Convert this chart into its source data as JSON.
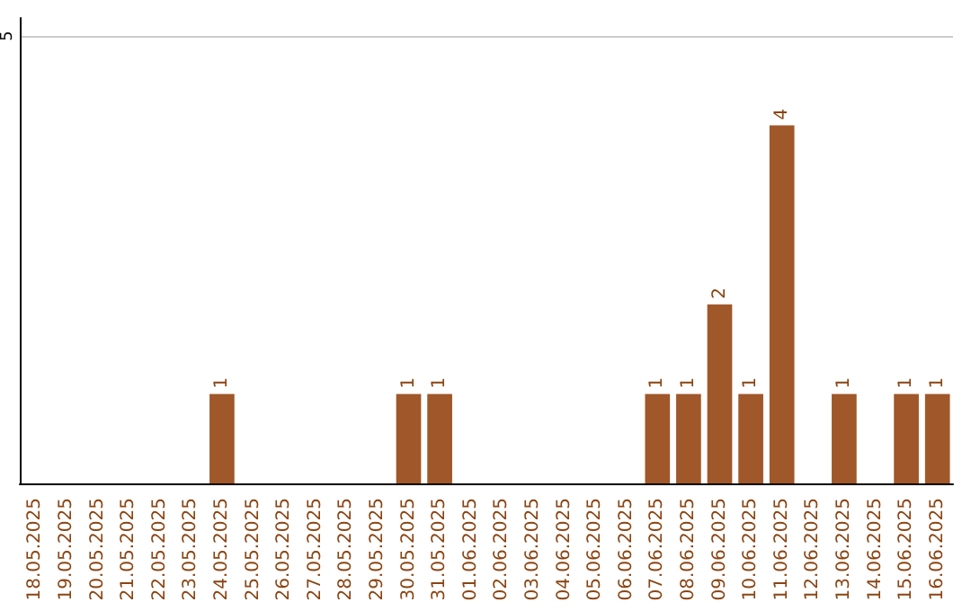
{
  "chart_data": {
    "type": "bar",
    "categories": [
      "18.05.2025",
      "19.05.2025",
      "20.05.2025",
      "21.05.2025",
      "22.05.2025",
      "23.05.2025",
      "24.05.2025",
      "25.05.2025",
      "26.05.2025",
      "27.05.2025",
      "28.05.2025",
      "29.05.2025",
      "30.05.2025",
      "31.05.2025",
      "01.06.2025",
      "02.06.2025",
      "03.06.2025",
      "04.06.2025",
      "05.06.2025",
      "06.06.2025",
      "07.06.2025",
      "08.06.2025",
      "09.06.2025",
      "10.06.2025",
      "11.06.2025",
      "12.06.2025",
      "13.06.2025",
      "14.06.2025",
      "15.06.2025",
      "16.06.2025"
    ],
    "values": [
      0,
      0,
      0,
      0,
      0,
      0,
      1,
      0,
      0,
      0,
      0,
      0,
      1,
      1,
      0,
      0,
      0,
      0,
      0,
      0,
      1,
      1,
      2,
      1,
      4,
      0,
      1,
      0,
      1,
      1
    ],
    "value_labels": [
      null,
      null,
      null,
      null,
      null,
      null,
      "1",
      null,
      null,
      null,
      null,
      null,
      "1",
      "1",
      null,
      null,
      null,
      null,
      null,
      null,
      "1",
      "1",
      "2",
      "1",
      "4",
      null,
      "1",
      null,
      "1",
      "1"
    ],
    "color": "#a0572a",
    "ylim": [
      0,
      5.2
    ],
    "yticks": [
      {
        "value": 0,
        "label": null
      },
      5
    ],
    "grid": "y"
  }
}
